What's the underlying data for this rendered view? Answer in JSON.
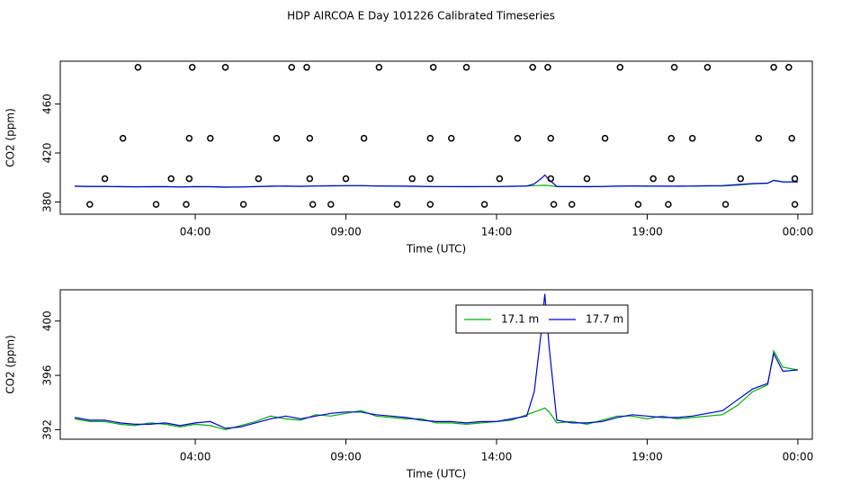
{
  "title": "HDP AIRCOA E  Day 101226  Calibrated Timeseries",
  "chart_data": [
    {
      "type": "line",
      "xlabel": "Time (UTC)",
      "ylabel": "CO2 (ppm)",
      "xlim": [
        -0.48,
        24.48
      ],
      "ylim": [
        370,
        495
      ],
      "xticks": [
        {
          "value": 4,
          "label": "04:00"
        },
        {
          "value": 9,
          "label": "09:00"
        },
        {
          "value": 14,
          "label": "14:00"
        },
        {
          "value": 19,
          "label": "19:00"
        },
        {
          "value": 24,
          "label": "00:00"
        }
      ],
      "yticks": [
        380,
        420,
        460
      ],
      "x": [
        0,
        0.5,
        1,
        1.5,
        2,
        2.5,
        3,
        3.5,
        4,
        4.5,
        5,
        5.5,
        6,
        6.5,
        7,
        7.5,
        8,
        8.5,
        9,
        9.5,
        10,
        10.5,
        11,
        11.5,
        12,
        12.5,
        13,
        13.5,
        14,
        14.5,
        15,
        15.25,
        15.5,
        15.6,
        15.75,
        16,
        16.5,
        17,
        17.5,
        18,
        18.5,
        19,
        19.5,
        20,
        20.5,
        21,
        21.5,
        22,
        22.5,
        23,
        23.2,
        23.5,
        24
      ],
      "series": [
        {
          "color": "#00b000",
          "values": [
            392.8,
            392.6,
            392.6,
            392.4,
            392.3,
            392.5,
            392.4,
            392.2,
            392.4,
            392.3,
            392.0,
            392.3,
            392.6,
            393.0,
            392.8,
            392.7,
            393.1,
            393.0,
            393.2,
            393.4,
            393.0,
            392.9,
            392.8,
            392.8,
            392.5,
            392.5,
            392.4,
            392.5,
            392.6,
            392.7,
            393.1,
            393.3,
            393.5,
            393.6,
            393.3,
            392.5,
            392.6,
            392.4,
            392.7,
            393.0,
            393.0,
            392.8,
            393.0,
            392.8,
            392.9,
            393.0,
            393.1,
            393.8,
            394.8,
            395.3,
            397.8,
            396.6,
            396.4
          ]
        },
        {
          "color": "#0000e0",
          "values": [
            392.9,
            392.7,
            392.7,
            392.5,
            392.4,
            392.4,
            392.5,
            392.3,
            392.5,
            392.6,
            392.1,
            392.2,
            392.5,
            392.8,
            393.0,
            392.8,
            393.0,
            393.2,
            393.3,
            393.3,
            393.1,
            393.0,
            392.9,
            392.7,
            392.6,
            392.6,
            392.5,
            392.6,
            392.6,
            392.8,
            393.0,
            394.8,
            399.5,
            402.0,
            398.0,
            392.7,
            392.5,
            392.5,
            392.6,
            392.9,
            393.1,
            393.0,
            392.9,
            392.9,
            393.0,
            393.2,
            393.4,
            394.2,
            395.0,
            395.4,
            397.6,
            396.3,
            396.4
          ]
        }
      ],
      "points": {
        "color": "#000000",
        "x": [
          2.1,
          3.9,
          5.0,
          7.2,
          7.7,
          10.1,
          11.9,
          13.0,
          15.2,
          15.7,
          18.1,
          19.9,
          21.0,
          23.2,
          23.7,
          1.6,
          3.8,
          4.5,
          6.7,
          7.8,
          9.6,
          11.8,
          12.5,
          14.7,
          15.8,
          17.6,
          19.8,
          20.5,
          22.7,
          23.8,
          1.0,
          3.2,
          3.8,
          6.1,
          7.8,
          9.0,
          11.2,
          11.8,
          14.1,
          15.8,
          17.0,
          19.2,
          19.8,
          22.1,
          23.9,
          0.5,
          2.7,
          3.7,
          5.6,
          7.9,
          8.5,
          10.7,
          11.8,
          13.6,
          15.9,
          16.5,
          18.7,
          19.7,
          21.6,
          23.9
        ],
        "y": [
          490,
          490,
          490,
          490,
          490,
          490,
          490,
          490,
          490,
          490,
          490,
          490,
          490,
          490,
          490,
          432,
          432,
          432,
          432,
          432,
          432,
          432,
          432,
          432,
          432,
          432,
          432,
          432,
          432,
          432,
          399,
          399,
          399,
          399,
          399,
          399,
          399,
          399,
          399,
          399,
          399,
          399,
          399,
          399,
          399,
          378,
          378,
          378,
          378,
          378,
          378,
          378,
          378,
          378,
          378,
          378,
          378,
          378,
          378,
          378
        ]
      }
    },
    {
      "type": "line",
      "xlabel": "Time (UTC)",
      "ylabel": "CO2 (ppm)",
      "xlim": [
        -0.48,
        24.48
      ],
      "ylim": [
        391.3,
        402.3
      ],
      "xticks": [
        {
          "value": 4,
          "label": "04:00"
        },
        {
          "value": 9,
          "label": "09:00"
        },
        {
          "value": 14,
          "label": "14:00"
        },
        {
          "value": 19,
          "label": "19:00"
        },
        {
          "value": 24,
          "label": "00:00"
        }
      ],
      "yticks": [
        392,
        396,
        400
      ],
      "legend": "top",
      "x": [
        0,
        0.5,
        1,
        1.5,
        2,
        2.5,
        3,
        3.5,
        4,
        4.5,
        5,
        5.5,
        6,
        6.5,
        7,
        7.5,
        8,
        8.5,
        9,
        9.5,
        10,
        10.5,
        11,
        11.5,
        12,
        12.5,
        13,
        13.5,
        14,
        14.5,
        15,
        15.25,
        15.5,
        15.6,
        15.75,
        16,
        16.5,
        17,
        17.5,
        18,
        18.5,
        19,
        19.5,
        20,
        20.5,
        21,
        21.5,
        22,
        22.5,
        23,
        23.2,
        23.5,
        24
      ],
      "series": [
        {
          "name": "17.1 m",
          "color": "#00b000",
          "values": [
            392.8,
            392.6,
            392.6,
            392.4,
            392.3,
            392.5,
            392.4,
            392.2,
            392.4,
            392.3,
            392.0,
            392.3,
            392.6,
            393.0,
            392.8,
            392.7,
            393.1,
            393.0,
            393.2,
            393.4,
            393.0,
            392.9,
            392.8,
            392.8,
            392.5,
            392.5,
            392.4,
            392.5,
            392.6,
            392.7,
            393.1,
            393.3,
            393.5,
            393.6,
            393.3,
            392.5,
            392.6,
            392.4,
            392.7,
            393.0,
            393.0,
            392.8,
            393.0,
            392.8,
            392.9,
            393.0,
            393.1,
            393.8,
            394.8,
            395.3,
            397.8,
            396.6,
            396.4
          ]
        },
        {
          "name": "17.7 m",
          "color": "#0000e0",
          "values": [
            392.9,
            392.7,
            392.7,
            392.5,
            392.4,
            392.4,
            392.5,
            392.3,
            392.5,
            392.6,
            392.1,
            392.2,
            392.5,
            392.8,
            393.0,
            392.8,
            393.0,
            393.2,
            393.3,
            393.3,
            393.1,
            393.0,
            392.9,
            392.7,
            392.6,
            392.6,
            392.5,
            392.6,
            392.6,
            392.8,
            393.0,
            394.8,
            399.5,
            402.0,
            398.0,
            392.7,
            392.5,
            392.5,
            392.6,
            392.9,
            393.1,
            393.0,
            392.9,
            392.9,
            393.0,
            393.2,
            393.4,
            394.2,
            395.0,
            395.4,
            397.6,
            396.3,
            396.4
          ]
        }
      ]
    }
  ]
}
